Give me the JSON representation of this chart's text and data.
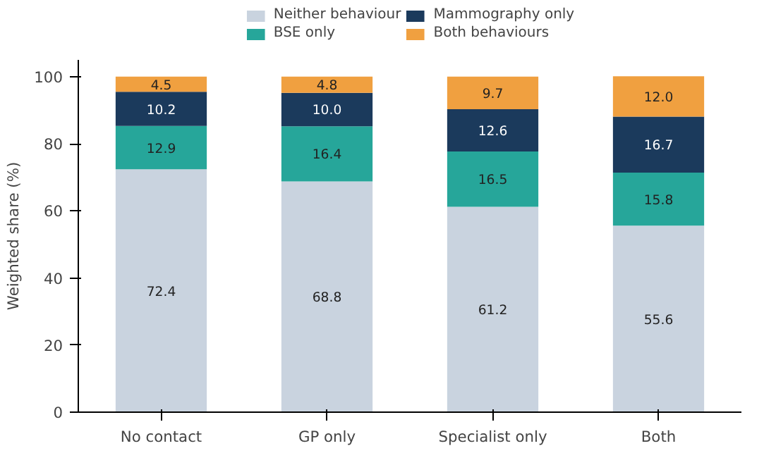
{
  "chart_data": {
    "type": "bar",
    "stacked": true,
    "ylabel": "Weighted share (%)",
    "categories": [
      "No contact",
      "GP only",
      "Specialist only",
      "Both"
    ],
    "series": [
      {
        "name": "Neither behaviour",
        "color": "#c9d3df",
        "values": [
          72.4,
          68.8,
          61.2,
          55.6
        ],
        "value_labels": [
          "72.4",
          "68.8",
          "61.2",
          "55.6"
        ]
      },
      {
        "name": "BSE only",
        "color": "#26a69a",
        "values": [
          12.9,
          16.4,
          16.5,
          15.8
        ],
        "value_labels": [
          "12.9",
          "16.4",
          "16.5",
          "15.8"
        ]
      },
      {
        "name": "Mammography only",
        "color": "#1b3a5c",
        "values": [
          10.2,
          10.0,
          12.6,
          16.7
        ],
        "value_labels": [
          "10.2",
          "10.0",
          "12.6",
          "16.7"
        ]
      },
      {
        "name": "Both behaviours",
        "color": "#f0a040",
        "values": [
          4.5,
          4.8,
          9.7,
          12.0
        ],
        "value_labels": [
          "4.5",
          "4.8",
          "9.7",
          "12.0"
        ]
      }
    ],
    "ylim": [
      0,
      105
    ],
    "yticks": [
      0,
      20,
      40,
      60,
      80,
      100
    ],
    "grid": false,
    "legend": "top"
  }
}
